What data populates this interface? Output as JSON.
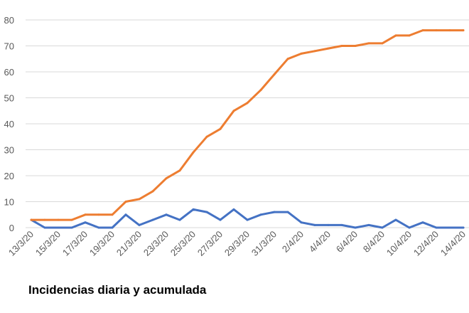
{
  "caption": "Incidencias diaria y acumulada",
  "chart_data": {
    "type": "line",
    "x": [
      "13/3/20",
      "14/3/20",
      "15/3/20",
      "16/3/20",
      "17/3/20",
      "18/3/20",
      "19/3/20",
      "20/3/20",
      "21/3/20",
      "22/3/20",
      "23/3/20",
      "24/3/20",
      "25/3/20",
      "26/3/20",
      "27/3/20",
      "28/3/20",
      "29/3/20",
      "30/3/20",
      "31/3/20",
      "1/4/20",
      "2/4/20",
      "3/4/20",
      "4/4/20",
      "5/4/20",
      "6/4/20",
      "7/4/20",
      "8/4/20",
      "9/4/20",
      "10/4/20",
      "11/4/20",
      "12/4/20",
      "13/4/20",
      "14/4/20"
    ],
    "tick_labels": [
      "13/3/20",
      "15/3/20",
      "17/3/20",
      "19/3/20",
      "21/3/20",
      "23/3/20",
      "25/3/20",
      "27/3/20",
      "29/3/20",
      "31/3/20",
      "2/4/20",
      "4/4/20",
      "6/4/20",
      "8/4/20",
      "10/4/20",
      "12/4/20",
      "14/4/20"
    ],
    "series": [
      {
        "color": "#4472c4",
        "values": [
          3,
          0,
          0,
          0,
          2,
          0,
          0,
          5,
          1,
          3,
          5,
          3,
          7,
          6,
          3,
          7,
          3,
          5,
          6,
          6,
          2,
          1,
          1,
          1,
          0,
          1,
          0,
          3,
          0,
          2,
          0,
          0,
          0
        ]
      },
      {
        "color": "#ed7d31",
        "values": [
          3,
          3,
          3,
          3,
          5,
          5,
          5,
          10,
          11,
          14,
          19,
          22,
          29,
          35,
          38,
          45,
          48,
          53,
          59,
          65,
          67,
          68,
          69,
          70,
          70,
          71,
          71,
          74,
          74,
          76,
          76,
          76,
          76
        ]
      }
    ],
    "ylim": [
      0,
      80
    ],
    "yticks": [
      0,
      10,
      20,
      30,
      40,
      50,
      60,
      70,
      80
    ],
    "grid": true,
    "xlabel": "",
    "ylabel": ""
  }
}
